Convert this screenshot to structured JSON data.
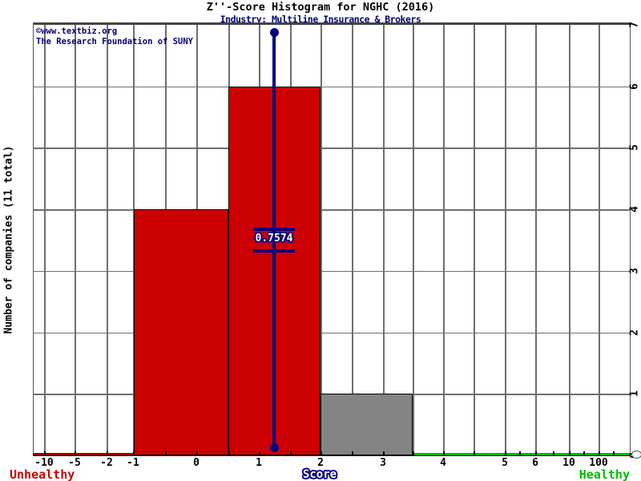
{
  "chart_data": {
    "type": "bar",
    "title": "Z''-Score Histogram for NGHC (2016)",
    "subtitle": "Industry: Multiline Insurance & Brokers",
    "xlabel": "Score",
    "ylabel": "Number of companies (11 total)",
    "total_companies": 11,
    "ylim": [
      0,
      7
    ],
    "grid": true,
    "legend": false,
    "y_ticks_right": [
      0,
      1,
      2,
      3,
      4,
      5,
      6,
      7
    ],
    "x_tick_labels": [
      "-10",
      "-5",
      "-2",
      "-1",
      "0",
      "1",
      "2",
      "3",
      "4",
      "5",
      "6",
      "10",
      "100"
    ],
    "bins": [
      {
        "x_start": -1.0,
        "x_end": 0.5,
        "count": 4,
        "color": "#cc0000"
      },
      {
        "x_start": 0.5,
        "x_end": 2.0,
        "count": 6,
        "color": "#cc0000"
      },
      {
        "x_start": 2.0,
        "x_end": 3.5,
        "count": 1,
        "color": "#848484"
      }
    ],
    "score_marker": {
      "value_label": "0.7574",
      "color": "#000080"
    },
    "zones": {
      "unhealthy_label": "Unhealthy",
      "unhealthy_color": "#cc0000",
      "healthy_label": "Healthy",
      "healthy_color": "#00bb00"
    },
    "watermark": {
      "line1": "©www.textbiz.org",
      "line2": "The Research Foundation of SUNY",
      "color": "#000080"
    }
  }
}
